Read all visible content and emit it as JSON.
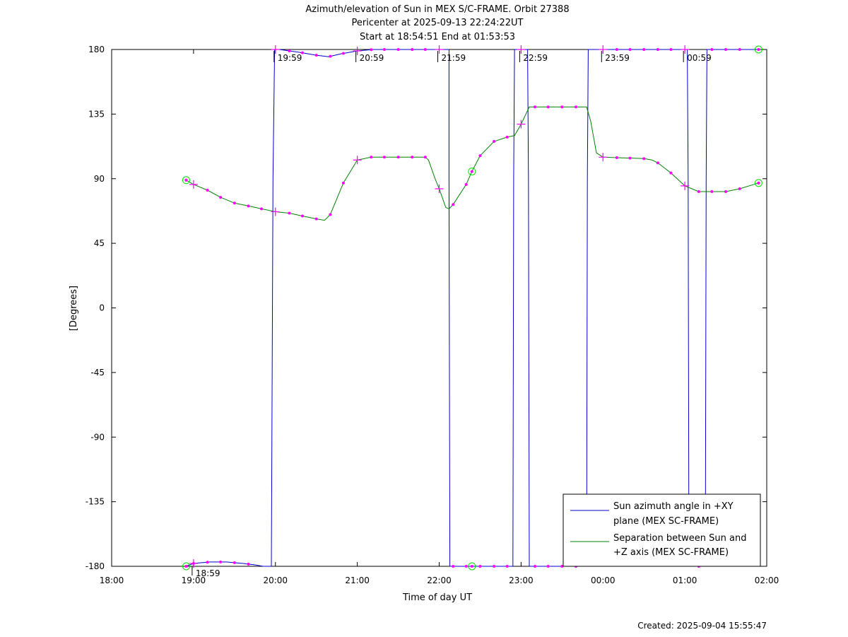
{
  "chart_data": {
    "type": "line",
    "title": "Azimuth/elevation of Sun in MEX S/C-FRAME.  Orbit 27388",
    "subtitle_1": "Pericenter at 2025-09-13 22:24:22UT",
    "subtitle_2": "Start at 18:54:51 End at 01:53:53",
    "xlabel": "Time of day UT",
    "ylabel": "[Degrees]",
    "footer": "Created: 2025-09-04 15:55:47",
    "xlim_hours": [
      18,
      26
    ],
    "ylim": [
      -180,
      180
    ],
    "x_ticks": [
      {
        "value": 18,
        "label": "18:00"
      },
      {
        "value": 19,
        "label": "19:00"
      },
      {
        "value": 20,
        "label": "20:00"
      },
      {
        "value": 21,
        "label": "21:00"
      },
      {
        "value": 22,
        "label": "22:00"
      },
      {
        "value": 23,
        "label": "23:00"
      },
      {
        "value": 24,
        "label": "00:00"
      },
      {
        "value": 25,
        "label": "01:00"
      },
      {
        "value": 26,
        "label": "02:00"
      }
    ],
    "y_ticks": [
      {
        "value": 180,
        "label": "180"
      },
      {
        "value": 135,
        "label": "135"
      },
      {
        "value": 90,
        "label": "90"
      },
      {
        "value": 45,
        "label": "45"
      },
      {
        "value": 0,
        "label": "0"
      },
      {
        "value": -45,
        "label": "-45"
      },
      {
        "value": -90,
        "label": "-90"
      },
      {
        "value": -135,
        "label": "-135"
      },
      {
        "value": -180,
        "label": "-180"
      }
    ],
    "time_markers": [
      {
        "x": 18.983,
        "y": -180,
        "label": "18:59",
        "below": true
      },
      {
        "x": 19.983,
        "y": 180,
        "label": "19:59",
        "below": false
      },
      {
        "x": 20.983,
        "y": 180,
        "label": "20:59",
        "below": false
      },
      {
        "x": 21.983,
        "y": 180,
        "label": "21:59",
        "below": false
      },
      {
        "x": 22.983,
        "y": 180,
        "label": "22:59",
        "below": false
      },
      {
        "x": 23.983,
        "y": 180,
        "label": "23:59",
        "below": false
      },
      {
        "x": 24.983,
        "y": 180,
        "label": "00:59",
        "below": false
      }
    ],
    "legend_position": "bottom-right",
    "colors": {
      "azimuth": "#0000cc",
      "separation": "#008000",
      "markers": "#ff00ff",
      "circles": "#00dd00"
    },
    "series": [
      {
        "name": "Sun azimuth angle in +XY plane (MEX SC-FRAME)",
        "color": "#0000cc",
        "points": [
          [
            18.91,
            -180
          ],
          [
            19.0,
            -178
          ],
          [
            19.2,
            -177
          ],
          [
            19.4,
            -177
          ],
          [
            19.6,
            -178
          ],
          [
            19.75,
            -179
          ],
          [
            19.85,
            -180
          ],
          [
            19.95,
            -180
          ],
          [
            19.97,
            90
          ],
          [
            19.99,
            180
          ],
          [
            20.05,
            180
          ],
          [
            20.3,
            178
          ],
          [
            20.5,
            176
          ],
          [
            20.65,
            175
          ],
          [
            20.8,
            177
          ],
          [
            21.0,
            179
          ],
          [
            21.2,
            180
          ],
          [
            22.12,
            180
          ],
          [
            22.12,
            90
          ],
          [
            22.13,
            -180
          ],
          [
            22.3,
            -180
          ],
          [
            22.9,
            -180
          ],
          [
            22.91,
            90
          ],
          [
            22.92,
            180
          ],
          [
            23.0,
            180
          ],
          [
            23.08,
            180
          ],
          [
            23.09,
            90
          ],
          [
            23.1,
            -180
          ],
          [
            23.8,
            -180
          ],
          [
            23.81,
            90
          ],
          [
            23.82,
            180
          ],
          [
            25.03,
            180
          ],
          [
            25.04,
            90
          ],
          [
            25.05,
            -180
          ],
          [
            25.25,
            -180
          ],
          [
            25.26,
            90
          ],
          [
            25.27,
            180
          ],
          [
            25.9,
            180
          ]
        ],
        "dot_times": [
          19.0,
          19.17,
          19.33,
          19.5,
          19.67,
          20.17,
          20.33,
          20.5,
          20.67,
          20.83,
          21.17,
          21.33,
          21.5,
          21.67,
          21.83,
          22.17,
          22.33,
          22.5,
          22.67,
          22.83,
          23.17,
          23.33,
          23.5,
          23.67,
          24.17,
          24.33,
          24.5,
          24.67,
          24.83,
          25.17,
          25.33,
          25.5,
          25.67
        ],
        "plus_points": [
          [
            19.0,
            -178
          ],
          [
            20.0,
            180
          ],
          [
            21.0,
            179
          ],
          [
            22.0,
            180
          ],
          [
            23.0,
            180
          ],
          [
            24.0,
            180
          ],
          [
            25.0,
            180
          ]
        ],
        "circle_points": [
          [
            18.91,
            -180
          ],
          [
            22.4,
            -180
          ],
          [
            25.9,
            180
          ]
        ]
      },
      {
        "name": "Separation between Sun and +Z axis (MEX SC-FRAME)",
        "color": "#008000",
        "points": [
          [
            18.91,
            89
          ],
          [
            19.0,
            86
          ],
          [
            19.17,
            82
          ],
          [
            19.33,
            77
          ],
          [
            19.5,
            73
          ],
          [
            19.67,
            71
          ],
          [
            19.83,
            69
          ],
          [
            20.0,
            67
          ],
          [
            20.17,
            66
          ],
          [
            20.33,
            64
          ],
          [
            20.5,
            62
          ],
          [
            20.6,
            61
          ],
          [
            20.67,
            65
          ],
          [
            20.83,
            87
          ],
          [
            21.0,
            103
          ],
          [
            21.17,
            105
          ],
          [
            21.5,
            105
          ],
          [
            21.83,
            105
          ],
          [
            21.87,
            103
          ],
          [
            21.95,
            90
          ],
          [
            22.0,
            83
          ],
          [
            22.08,
            70
          ],
          [
            22.12,
            69
          ],
          [
            22.17,
            72
          ],
          [
            22.33,
            86
          ],
          [
            22.4,
            95
          ],
          [
            22.5,
            106
          ],
          [
            22.67,
            116
          ],
          [
            22.83,
            119
          ],
          [
            22.92,
            120
          ],
          [
            23.0,
            128
          ],
          [
            23.1,
            140
          ],
          [
            23.17,
            140
          ],
          [
            23.5,
            140
          ],
          [
            23.8,
            140
          ],
          [
            23.85,
            130
          ],
          [
            23.92,
            108
          ],
          [
            24.0,
            105
          ],
          [
            24.5,
            104
          ],
          [
            24.6,
            103
          ],
          [
            24.67,
            101
          ],
          [
            24.83,
            94
          ],
          [
            25.0,
            85
          ],
          [
            25.17,
            81
          ],
          [
            25.33,
            81
          ],
          [
            25.5,
            81
          ],
          [
            25.67,
            83
          ],
          [
            25.9,
            87
          ]
        ],
        "dot_times": [
          18.91,
          19.17,
          19.33,
          19.5,
          19.67,
          19.83,
          20.17,
          20.33,
          20.5,
          20.67,
          20.83,
          21.17,
          21.33,
          21.5,
          21.67,
          21.83,
          22.17,
          22.33,
          22.5,
          22.67,
          22.83,
          23.17,
          23.33,
          23.5,
          23.67,
          24.17,
          24.33,
          24.5,
          24.67,
          24.83,
          25.17,
          25.33,
          25.5,
          25.67,
          25.9
        ],
        "plus_points": [
          [
            19.0,
            86
          ],
          [
            20.0,
            67
          ],
          [
            21.0,
            103
          ],
          [
            22.0,
            83
          ],
          [
            23.0,
            128
          ],
          [
            24.0,
            105
          ],
          [
            25.0,
            85
          ]
        ],
        "circle_points": [
          [
            18.91,
            89
          ],
          [
            22.4,
            95
          ],
          [
            25.9,
            87
          ]
        ]
      }
    ]
  }
}
